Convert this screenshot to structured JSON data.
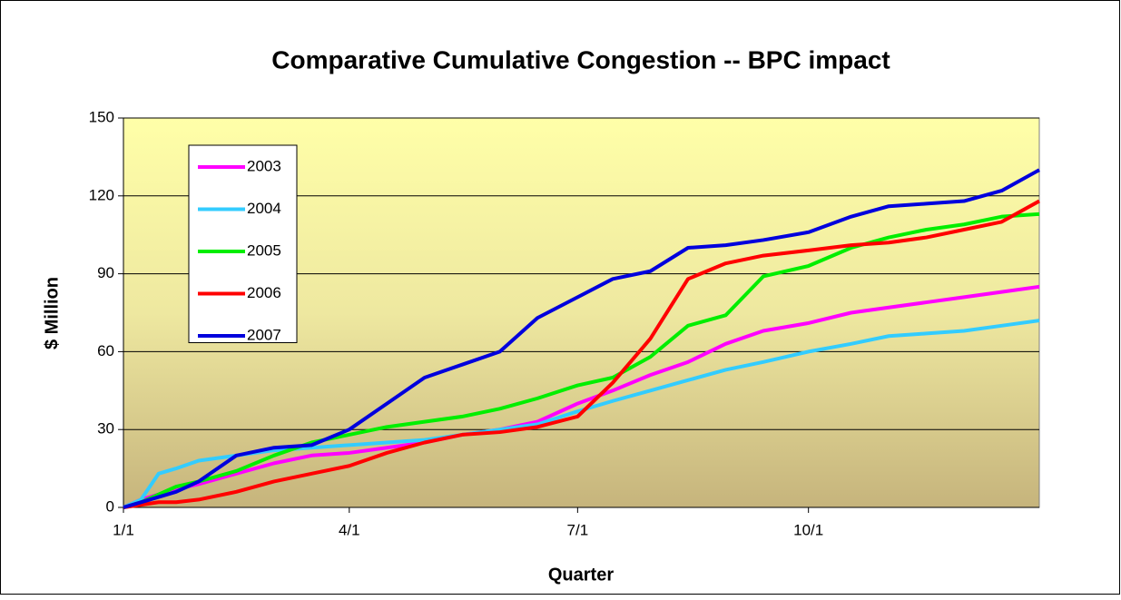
{
  "chart_data": {
    "type": "line",
    "title": "Comparative Cumulative Congestion -- BPC impact",
    "x_label": "Quarter",
    "y_label": "$ Million",
    "x": [
      0,
      7,
      14,
      21,
      30,
      45,
      60,
      75,
      90,
      105,
      120,
      135,
      150,
      165,
      181,
      195,
      210,
      225,
      240,
      255,
      273,
      290,
      305,
      320,
      335,
      350,
      365
    ],
    "xlim": [
      0,
      365
    ],
    "xticks": [
      {
        "value": 0,
        "label": "1/1"
      },
      {
        "value": 90,
        "label": "4/1"
      },
      {
        "value": 181,
        "label": "7/1"
      },
      {
        "value": 273,
        "label": "10/1"
      }
    ],
    "ylim": [
      0,
      150
    ],
    "yticks": [
      0,
      30,
      60,
      90,
      120,
      150
    ],
    "grid": true,
    "legend": "upper left",
    "series": [
      {
        "name": "2003",
        "color": "#ff00ff",
        "values": [
          0,
          3,
          5,
          7,
          9,
          13,
          17,
          20,
          21,
          23,
          25,
          28,
          30,
          33,
          40,
          45,
          51,
          56,
          63,
          68,
          71,
          75,
          77,
          79,
          81,
          83,
          85
        ]
      },
      {
        "name": "2004",
        "color": "#33ccff",
        "values": [
          0,
          3,
          13,
          15,
          18,
          20,
          22,
          23,
          24,
          25,
          26,
          28,
          30,
          32,
          37,
          41,
          45,
          49,
          53,
          56,
          60,
          63,
          66,
          67,
          68,
          70,
          72
        ]
      },
      {
        "name": "2005",
        "color": "#00ee00",
        "values": [
          0,
          2,
          5,
          8,
          10,
          14,
          20,
          25,
          28,
          31,
          33,
          35,
          38,
          42,
          47,
          50,
          58,
          70,
          74,
          89,
          93,
          100,
          104,
          107,
          109,
          112,
          113
        ]
      },
      {
        "name": "2006",
        "color": "#ff0000",
        "values": [
          0,
          1,
          2,
          2,
          3,
          6,
          10,
          13,
          16,
          21,
          25,
          28,
          29,
          31,
          35,
          48,
          65,
          88,
          94,
          97,
          99,
          101,
          102,
          104,
          107,
          110,
          118
        ]
      },
      {
        "name": "2007",
        "color": "#0000dd",
        "values": [
          0,
          2,
          4,
          6,
          10,
          20,
          23,
          24,
          30,
          40,
          50,
          55,
          60,
          73,
          81,
          88,
          91,
          100,
          101,
          103,
          106,
          112,
          116,
          117,
          118,
          122,
          130
        ]
      }
    ]
  }
}
